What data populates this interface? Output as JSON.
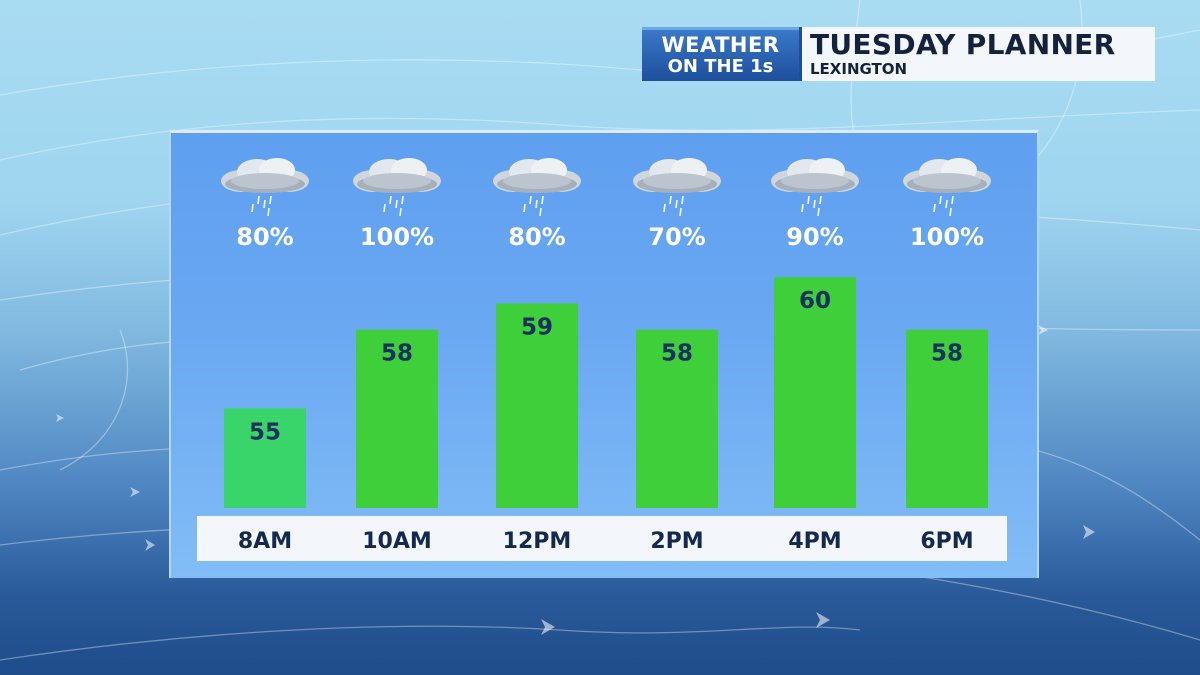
{
  "header": {
    "logo_line1": "WEATHER",
    "logo_line2": "ON THE 1s",
    "title": "TUESDAY PLANNER",
    "location": "LEXINGTON"
  },
  "colors": {
    "bar": "#3ecf3a",
    "bar_first": "#3ad56a",
    "value_text": "#17305e",
    "axis_strip": "#f3f6fa",
    "panel": "#6aa8f2"
  },
  "chart_data": {
    "type": "bar",
    "categories": [
      "8AM",
      "10AM",
      "12PM",
      "2PM",
      "4PM",
      "6PM"
    ],
    "values": [
      55,
      58,
      59,
      58,
      60,
      58
    ],
    "rain_chance": [
      "80%",
      "100%",
      "80%",
      "70%",
      "90%",
      "100%"
    ],
    "icons": [
      "rain-cloud-icon",
      "rain-cloud-icon",
      "rain-cloud-icon",
      "rain-cloud-icon",
      "rain-cloud-icon",
      "rain-cloud-icon"
    ],
    "ylim": [
      51.2,
      61.8
    ],
    "grid": false,
    "legend": "none"
  }
}
